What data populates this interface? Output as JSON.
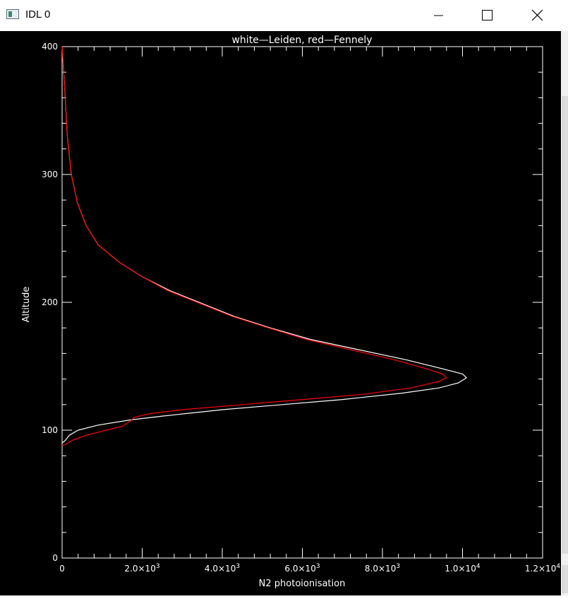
{
  "window": {
    "title": "IDL 0",
    "icons": {
      "app": "idl-window-icon",
      "minimize": "minimize-icon",
      "maximize": "maximize-icon",
      "close": "close-icon"
    }
  },
  "chart_data": {
    "type": "line",
    "title": "white—Leiden,  red—Fennely",
    "xlabel": "N2 photoionisation",
    "ylabel": "Altitude",
    "xlim": [
      0,
      12000
    ],
    "ylim": [
      0,
      400
    ],
    "background": "#000000",
    "axis_color": "#ffffff",
    "x_ticks": [
      {
        "value": 0,
        "base": "0",
        "exp": ""
      },
      {
        "value": 2000,
        "base": "2.0×10",
        "exp": "3"
      },
      {
        "value": 4000,
        "base": "4.0×10",
        "exp": "3"
      },
      {
        "value": 6000,
        "base": "6.0×10",
        "exp": "3"
      },
      {
        "value": 8000,
        "base": "8.0×10",
        "exp": "3"
      },
      {
        "value": 10000,
        "base": "1.0×10",
        "exp": "4"
      },
      {
        "value": 12000,
        "base": "1.2×10",
        "exp": "4"
      }
    ],
    "y_ticks": [
      0,
      100,
      200,
      300,
      400
    ],
    "series": [
      {
        "label": "white",
        "color": "#ffffff",
        "points": [
          [
            0,
            90
          ],
          [
            80,
            92
          ],
          [
            180,
            96
          ],
          [
            400,
            100
          ],
          [
            900,
            104
          ],
          [
            1700,
            108
          ],
          [
            2500,
            111
          ],
          [
            4000,
            116
          ],
          [
            5500,
            120
          ],
          [
            7000,
            124
          ],
          [
            8500,
            129
          ],
          [
            9400,
            133
          ],
          [
            9900,
            137
          ],
          [
            10100,
            141
          ],
          [
            10000,
            144
          ],
          [
            9500,
            148
          ],
          [
            8600,
            155
          ],
          [
            7400,
            163
          ],
          [
            6200,
            171
          ],
          [
            5200,
            180
          ],
          [
            4300,
            189
          ],
          [
            3500,
            199
          ],
          [
            2700,
            209
          ],
          [
            2000,
            220
          ],
          [
            1400,
            232
          ],
          [
            900,
            245
          ],
          [
            600,
            260
          ],
          [
            380,
            278
          ],
          [
            230,
            300
          ],
          [
            130,
            330
          ],
          [
            60,
            370
          ],
          [
            0,
            400
          ]
        ]
      },
      {
        "label": "red",
        "color": "#ff0000",
        "points": [
          [
            0,
            88
          ],
          [
            100,
            89
          ],
          [
            250,
            92
          ],
          [
            600,
            96
          ],
          [
            1100,
            100
          ],
          [
            1500,
            103
          ],
          [
            1700,
            107
          ],
          [
            1800,
            110
          ],
          [
            2200,
            113
          ],
          [
            3000,
            116
          ],
          [
            4500,
            120
          ],
          [
            6000,
            124
          ],
          [
            7500,
            128
          ],
          [
            8700,
            133
          ],
          [
            9400,
            138
          ],
          [
            9600,
            141
          ],
          [
            9500,
            144
          ],
          [
            9100,
            148
          ],
          [
            8300,
            155
          ],
          [
            7200,
            163
          ],
          [
            6100,
            171
          ],
          [
            5150,
            180
          ],
          [
            4250,
            189
          ],
          [
            3450,
            199
          ],
          [
            2650,
            209
          ],
          [
            2000,
            220
          ],
          [
            1400,
            232
          ],
          [
            900,
            245
          ],
          [
            600,
            260
          ],
          [
            380,
            278
          ],
          [
            230,
            300
          ],
          [
            130,
            330
          ],
          [
            60,
            370
          ],
          [
            0,
            400
          ]
        ]
      }
    ]
  }
}
